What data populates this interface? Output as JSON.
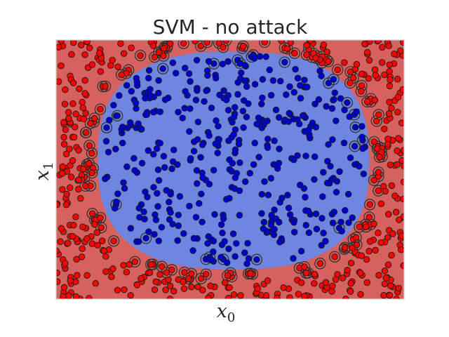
{
  "chart_data": {
    "type": "scatter",
    "title": "SVM - no attack",
    "xlabel_base": "x",
    "xlabel_sub": "0",
    "ylabel_base": "x",
    "ylabel_sub": "1",
    "xlim": [
      -1,
      1
    ],
    "ylim": [
      -1,
      1
    ],
    "grid": false,
    "xticks": [],
    "yticks": [],
    "background_regions": {
      "outer_color": "#d5625e",
      "inner_color": "#6f86e0",
      "boundary": {
        "cx": 0.02,
        "cy": 0.07,
        "rx": 0.78,
        "ry": 0.84,
        "exponent": 2.6
      }
    },
    "series": [
      {
        "class": "outer",
        "color": "#ff0000",
        "count": 480,
        "seed": 11
      },
      {
        "class": "inner",
        "color": "#0000cc",
        "count": 420,
        "seed": 23
      }
    ],
    "support_vectors": {
      "ring_color": "#333333",
      "count": 140
    }
  }
}
